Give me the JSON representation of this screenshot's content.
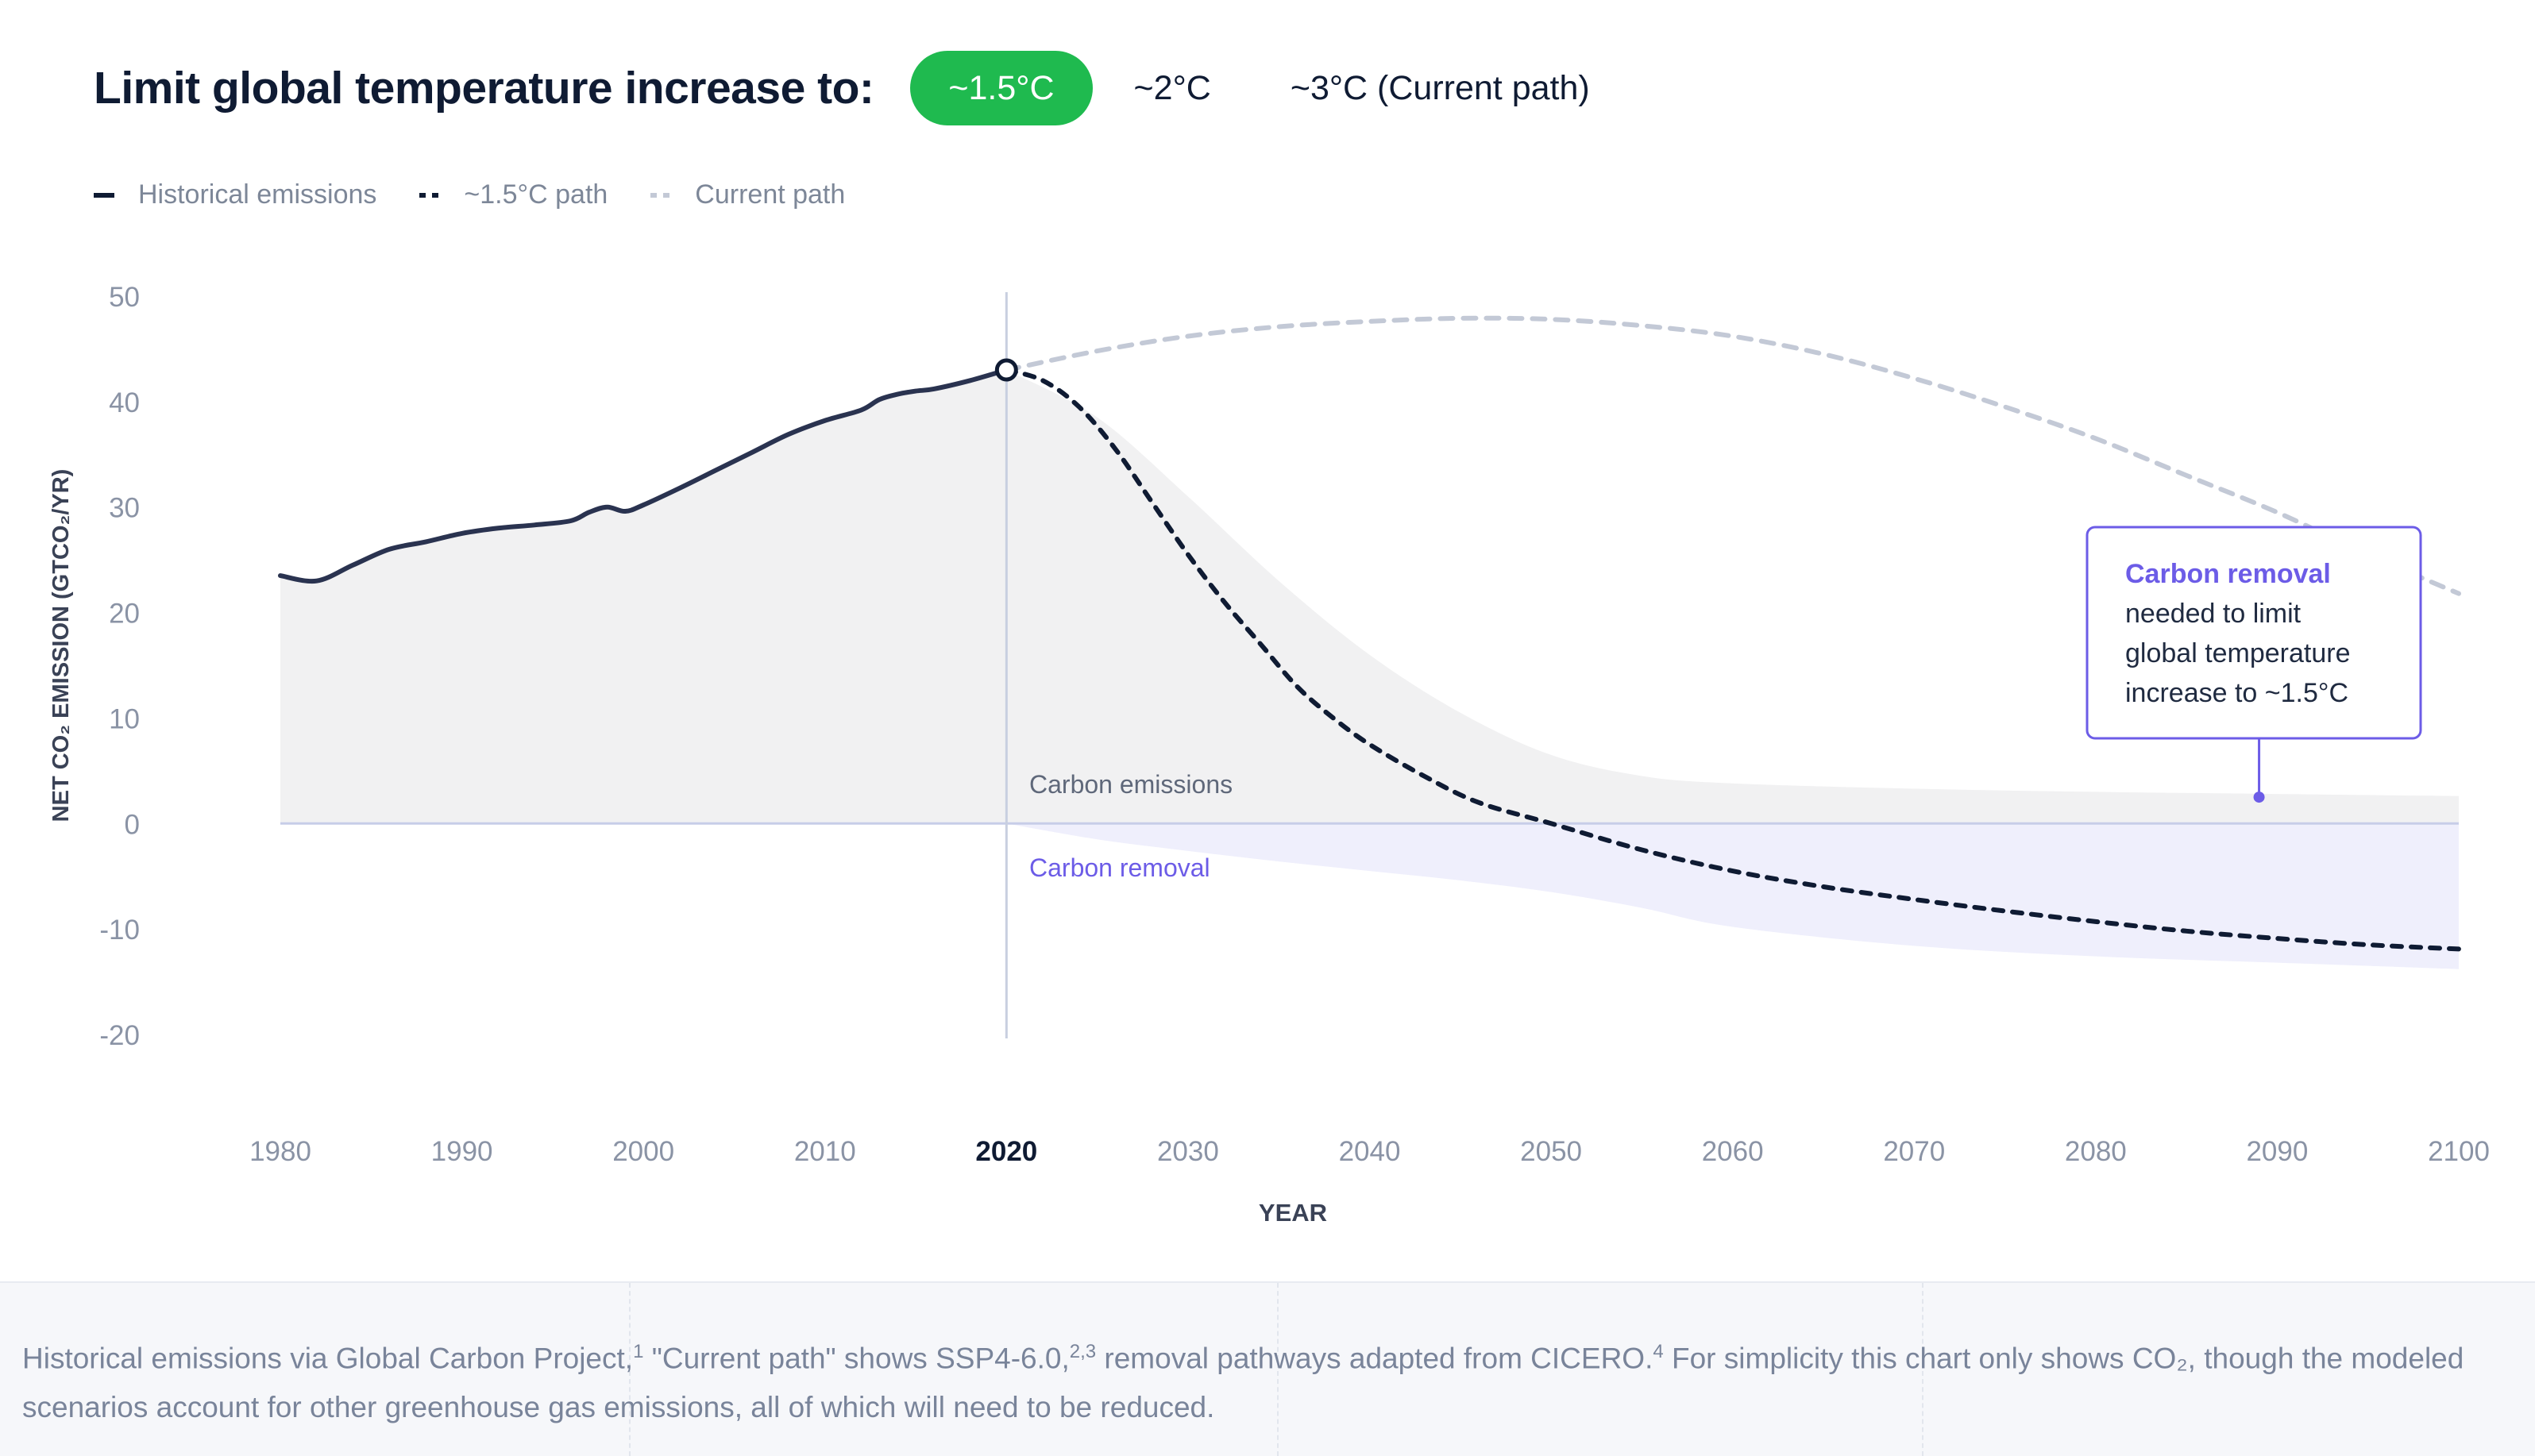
{
  "header": {
    "title": "Limit global temperature increase to:",
    "options": [
      {
        "label": "~1.5°C",
        "active": true
      },
      {
        "label": "~2°C",
        "active": false
      },
      {
        "label": "~3°C (Current path)",
        "active": false
      }
    ]
  },
  "legend": [
    {
      "label": "Historical emissions",
      "style": "solid",
      "color": "#2a3350"
    },
    {
      "label": "~1.5°C path",
      "style": "dashed",
      "color": "#0f1b33"
    },
    {
      "label": "Current path",
      "style": "dashed",
      "color": "#c3c9d6"
    }
  ],
  "chart_data": {
    "type": "line",
    "xlabel": "YEAR",
    "ylabel": "NET CO₂ EMISSION (GTCO₂/YR)",
    "xlim": [
      1980,
      2100
    ],
    "ylim": [
      -20,
      50
    ],
    "x_ticks": [
      "1980",
      "1990",
      "2000",
      "2010",
      "2020",
      "2030",
      "2040",
      "2050",
      "2060",
      "2070",
      "2080",
      "2090",
      "2100"
    ],
    "y_ticks": [
      "50",
      "40",
      "30",
      "20",
      "10",
      "0",
      "-10",
      "-20"
    ],
    "highlight_tick": "2020",
    "marker_year": 2020,
    "series": [
      {
        "name": "Historical emissions",
        "color": "#2a3350",
        "x": [
          1980,
          1982,
          1984,
          1986,
          1988,
          1990,
          1992,
          1994,
          1996,
          1997,
          1998,
          1999,
          2000,
          2002,
          2004,
          2006,
          2008,
          2010,
          2012,
          2013,
          2014,
          2015,
          2016,
          2018,
          2020
        ],
        "y": [
          23.5,
          23,
          24.5,
          26,
          26.7,
          27.5,
          28,
          28.3,
          28.7,
          29.5,
          30,
          29.6,
          30.2,
          31.8,
          33.5,
          35.2,
          36.9,
          38.2,
          39.2,
          40.2,
          40.7,
          41,
          41.2,
          42,
          43
        ]
      },
      {
        "name": "~1.5°C path",
        "color": "#0f1b33",
        "x": [
          2020,
          2022,
          2024,
          2026,
          2028,
          2030,
          2032,
          2034,
          2036,
          2038,
          2040,
          2043,
          2046,
          2050,
          2055,
          2060,
          2065,
          2070,
          2075,
          2080,
          2085,
          2090,
          2095,
          2100
        ],
        "y": [
          43,
          42,
          39.5,
          35.5,
          30.5,
          25.5,
          21,
          17,
          13,
          10,
          7.5,
          4.5,
          2,
          0,
          -2.5,
          -4.5,
          -6,
          -7.2,
          -8.3,
          -9.3,
          -10.2,
          -10.9,
          -11.5,
          -11.9
        ]
      },
      {
        "name": "Current path",
        "color": "#c3c9d6",
        "x": [
          2020,
          2025,
          2030,
          2035,
          2040,
          2045,
          2050,
          2055,
          2060,
          2065,
          2070,
          2075,
          2080,
          2085,
          2090,
          2095,
          2100
        ],
        "y": [
          43,
          44.8,
          46.2,
          47.1,
          47.6,
          47.9,
          47.8,
          47.2,
          46.2,
          44.5,
          42.2,
          39.5,
          36.5,
          33,
          29.5,
          25.5,
          21.8
        ]
      }
    ],
    "areas": [
      {
        "label": "Carbon emissions",
        "color": "#f1f1f2",
        "x": [
          2020,
          2025,
          2030,
          2035,
          2040,
          2045,
          2050,
          2055,
          2060,
          2070,
          2080,
          2090,
          2100
        ],
        "upper": [
          43,
          38.5,
          31,
          23,
          16,
          10.5,
          6.5,
          4.5,
          3.8,
          3.3,
          3,
          2.8,
          2.6
        ]
      },
      {
        "label": "Carbon removal",
        "color": "#efeffc",
        "x": [
          2020,
          2025,
          2030,
          2035,
          2040,
          2045,
          2050,
          2055,
          2060,
          2070,
          2080,
          2090,
          2100
        ],
        "lower": [
          0,
          -1.5,
          -2.6,
          -3.6,
          -4.5,
          -5.4,
          -6.5,
          -8,
          -9.8,
          -11.6,
          -12.6,
          -13.2,
          -13.8
        ]
      }
    ],
    "annotations": {
      "emissions_label": "Carbon emissions",
      "removal_label": "Carbon removal",
      "callout_title": "Carbon removal",
      "callout_lines": [
        "needed to limit",
        "global temperature",
        "increase to ~1.5°C"
      ],
      "callout_point": {
        "x": 2089,
        "y": 2.5
      }
    },
    "grid": false
  },
  "footer": {
    "text_1": "Historical emissions via Global Carbon Project,",
    "sup_1": "1",
    "text_2": " \"Current path\" shows SSP4-6.0,",
    "sup_2": "2,3",
    "text_3": " removal pathways adapted from CICERO.",
    "sup_3": "4",
    "text_4": " For simplicity this chart only shows CO₂, though the modeled scenarios account for other greenhouse gas emissions, all of which will need to be reduced."
  },
  "colors": {
    "accent_green": "#1fba4f",
    "removal_purple": "#6c5ce7",
    "axis_text": "#8a93a5"
  }
}
